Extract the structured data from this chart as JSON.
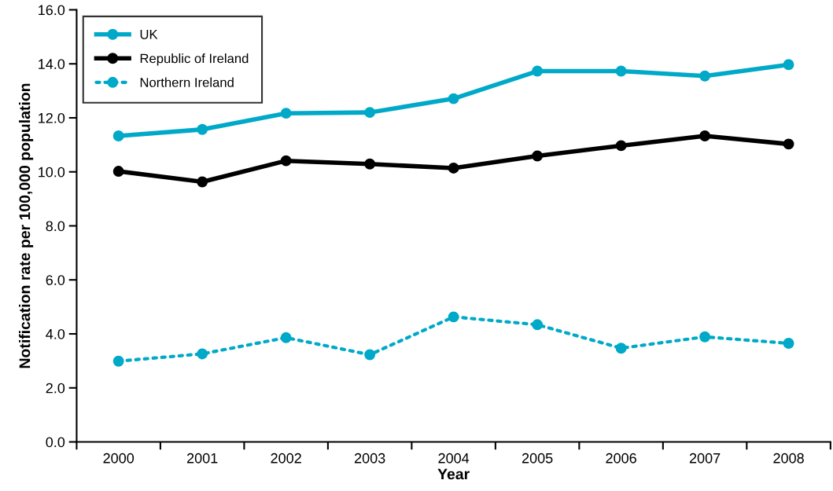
{
  "chart_data": {
    "type": "line",
    "xlabel": "Year",
    "ylabel": "Notification rate per 100,000 population",
    "categories": [
      "2000",
      "2001",
      "2002",
      "2003",
      "2004",
      "2005",
      "2006",
      "2007",
      "2008"
    ],
    "ylim": [
      0,
      16
    ],
    "yticks": [
      {
        "value": 0,
        "label": "0.0"
      },
      {
        "value": 2,
        "label": "2.0"
      },
      {
        "value": 4,
        "label": "4.0"
      },
      {
        "value": 6,
        "label": "6.0"
      },
      {
        "value": 8,
        "label": "8.0"
      },
      {
        "value": 10,
        "label": "10.0"
      },
      {
        "value": 12,
        "label": "12.0"
      },
      {
        "value": 14,
        "label": "14.0"
      },
      {
        "value": 16,
        "label": "16.0"
      }
    ],
    "grid": false,
    "legend": "top left",
    "marker": "circle",
    "series": [
      {
        "name": "UK",
        "color": "#00a9c8",
        "line_style": "solid",
        "values": [
          11.33,
          11.57,
          12.17,
          12.2,
          12.71,
          13.73,
          13.73,
          13.55,
          13.97
        ]
      },
      {
        "name": "Republic of Ireland",
        "color": "#000000",
        "line_style": "solid",
        "values": [
          10.02,
          9.63,
          10.41,
          10.29,
          10.14,
          10.59,
          10.97,
          11.33,
          11.03
        ]
      },
      {
        "name": "Northern Ireland",
        "color": "#00a9c8",
        "line_style": "dotted",
        "values": [
          2.99,
          3.26,
          3.86,
          3.23,
          4.63,
          4.34,
          3.47,
          3.89,
          3.65
        ]
      }
    ]
  }
}
